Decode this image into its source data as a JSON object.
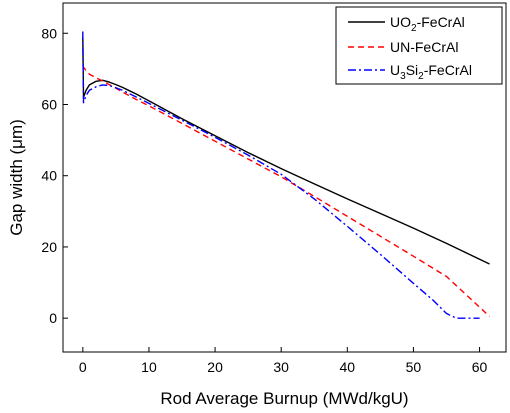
{
  "chart_data": {
    "type": "line",
    "title": "",
    "xlabel": "Rod Average Burnup (MWd/kgU)",
    "ylabel": "Gap width (μm)",
    "xlim": [
      -3,
      64
    ],
    "ylim": [
      -9.5,
      88.5
    ],
    "xticks": [
      "0",
      "10",
      "20",
      "30",
      "40",
      "50",
      "60"
    ],
    "yticks": [
      "0",
      "20",
      "40",
      "60",
      "80"
    ],
    "legend_position": "top-right",
    "grid": false,
    "series": [
      {
        "name": "UO2-FeCrAl",
        "name_main": "UO",
        "name_sub": "2",
        "name_rest": "-FeCrAl",
        "color": "#000000",
        "dash": "solid",
        "x": [
          0,
          0.1,
          0.5,
          1,
          2,
          3,
          4,
          5,
          6,
          8,
          10,
          15,
          20,
          25,
          30,
          35,
          40,
          45,
          50,
          55,
          61.5
        ],
        "y": [
          79,
          62,
          64,
          65.5,
          66.5,
          66.8,
          66.3,
          65.6,
          64.8,
          63,
          61,
          56,
          51.2,
          46.5,
          42,
          37.7,
          33.5,
          29.4,
          25.3,
          21,
          15.2
        ]
      },
      {
        "name": "UN-FeCrAl",
        "name_main": "UN-FeCrAl",
        "name_sub": "",
        "name_rest": "",
        "color": "#ff0000",
        "dash": "dashed",
        "x": [
          0,
          0.1,
          0.5,
          1,
          2,
          3,
          4,
          5,
          6,
          8,
          10,
          15,
          20,
          25,
          30,
          35,
          40,
          45,
          50,
          55,
          61.5
        ],
        "y": [
          71,
          70.5,
          69.5,
          68.5,
          67.5,
          66.6,
          65.6,
          64.6,
          63.5,
          61.5,
          59.6,
          54.7,
          49.7,
          44.7,
          39.7,
          34.2,
          28.6,
          23,
          17.4,
          11.7,
          0.5
        ]
      },
      {
        "name": "U3Si2-FeCrAl",
        "name_main": "U",
        "name_sub": "3",
        "name_mid": "Si",
        "name_sub2": "2",
        "name_rest": "-FeCrAl",
        "color": "#0000ff",
        "dash": "dashdot",
        "x": [
          0,
          0.1,
          0.5,
          1,
          2,
          3,
          4,
          5,
          6,
          8,
          10,
          15,
          20,
          25,
          30,
          35,
          40,
          45,
          50,
          53,
          55,
          56.5,
          58,
          60
        ],
        "y": [
          80.5,
          60.5,
          62.5,
          64,
          65,
          65.5,
          65.3,
          64.7,
          64,
          62.2,
          60.3,
          55.6,
          50.8,
          45.8,
          40.4,
          33.5,
          25.8,
          17.9,
          9.8,
          5,
          1.3,
          0,
          0,
          0
        ]
      }
    ]
  }
}
